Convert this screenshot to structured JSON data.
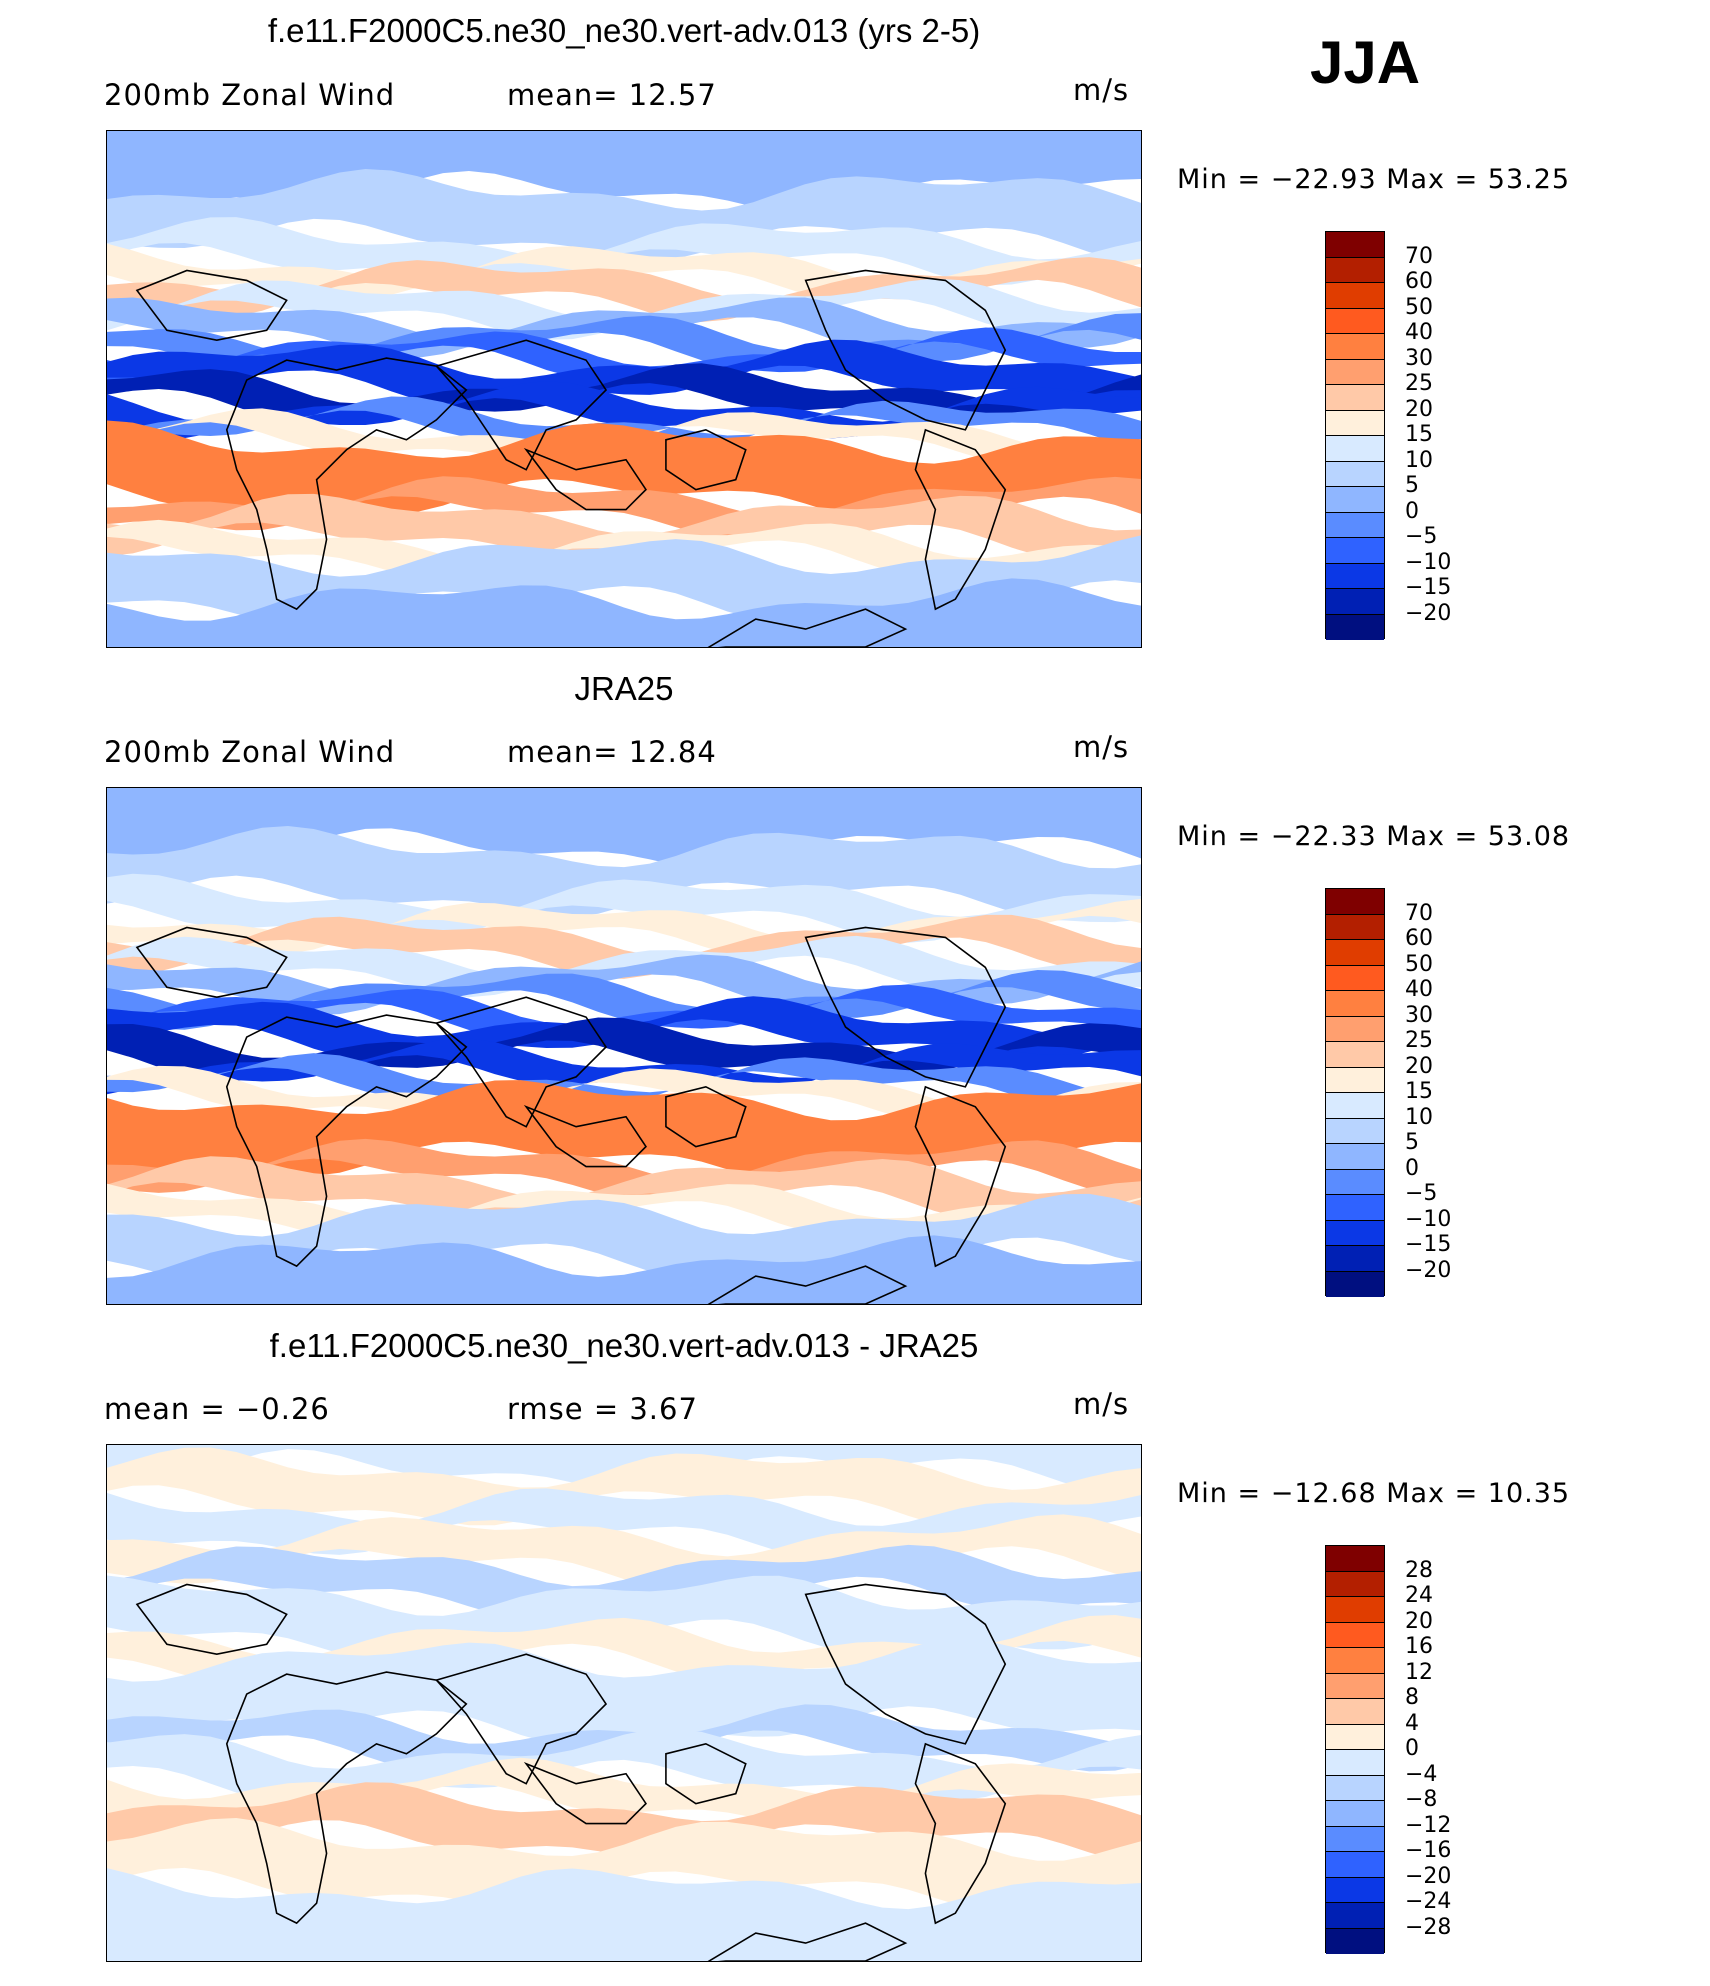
{
  "season": "JJA",
  "panels": [
    {
      "title": "f.e11.F2000C5.ne30_ne30.vert-adv.013 (yrs 2-5)",
      "left_label": "200mb  Zonal  Wind",
      "center_label": "mean=   12.57",
      "units": "m/s",
      "minmax": "Min  =  −22.93  Max  =    53.25",
      "colorbar_labels": [
        "70",
        "60",
        "50",
        "40",
        "30",
        "25",
        "20",
        "15",
        "10",
        "5",
        "0",
        "−5",
        "−10",
        "−15",
        "−20"
      ],
      "colors": [
        "#7f0000",
        "#b31f00",
        "#e03d00",
        "#ff5a1f",
        "#ff8040",
        "#ff9f6f",
        "#ffc9a8",
        "#fff0dc",
        "#d8eaff",
        "#b8d4ff",
        "#8fb6ff",
        "#5a8cff",
        "#2f62ff",
        "#0b38e6",
        "#0020b4",
        "#000f80"
      ],
      "contours": [
        [
          "#8fb6ff",
          0.0,
          0.3
        ],
        [
          "#b8d4ff",
          0.3,
          0.16
        ],
        [
          "#d8eaff",
          0.46,
          0.08
        ],
        [
          "#fff0dc",
          0.54,
          0.05
        ],
        [
          "#ffc9a8",
          0.59,
          0.07
        ],
        [
          "#d8eaff",
          0.66,
          0.06
        ],
        [
          "#8fb6ff",
          0.72,
          0.06
        ],
        [
          "#5a8cff",
          0.78,
          0.05
        ],
        [
          "#2f62ff",
          0.83,
          0.04
        ],
        [
          "#0b38e6",
          0.87,
          0.08
        ],
        [
          "#0020b4",
          0.95,
          0.06
        ],
        [
          "#0b38e6",
          1.01,
          0.05
        ],
        [
          "#5a8cff",
          1.06,
          0.04
        ],
        [
          "#fff0dc",
          1.1,
          0.04
        ],
        [
          "#ff8040",
          1.14,
          0.18
        ],
        [
          "#ff9f6f",
          1.32,
          0.06
        ],
        [
          "#ffc9a8",
          1.38,
          0.09
        ],
        [
          "#fff0dc",
          1.47,
          0.05
        ],
        [
          "#b8d4ff",
          1.52,
          0.15
        ],
        [
          "#8fb6ff",
          1.67,
          0.33
        ]
      ]
    },
    {
      "title": "JRA25",
      "left_label": "200mb  Zonal  Wind",
      "center_label": "mean=   12.84",
      "units": "m/s",
      "minmax": "Min  =  −22.33  Max  =    53.08",
      "colorbar_labels": [
        "70",
        "60",
        "50",
        "40",
        "30",
        "25",
        "20",
        "15",
        "10",
        "5",
        "0",
        "−5",
        "−10",
        "−15",
        "−20"
      ],
      "colors": [
        "#7f0000",
        "#b31f00",
        "#e03d00",
        "#ff5a1f",
        "#ff8040",
        "#ff9f6f",
        "#ffc9a8",
        "#fff0dc",
        "#d8eaff",
        "#b8d4ff",
        "#8fb6ff",
        "#5a8cff",
        "#2f62ff",
        "#0b38e6",
        "#0020b4",
        "#000f80"
      ],
      "contours": [
        [
          "#8fb6ff",
          0.0,
          0.3
        ],
        [
          "#b8d4ff",
          0.3,
          0.16
        ],
        [
          "#d8eaff",
          0.46,
          0.08
        ],
        [
          "#fff0dc",
          0.54,
          0.05
        ],
        [
          "#ffc9a8",
          0.59,
          0.07
        ],
        [
          "#d8eaff",
          0.66,
          0.06
        ],
        [
          "#8fb6ff",
          0.72,
          0.06
        ],
        [
          "#5a8cff",
          0.78,
          0.05
        ],
        [
          "#2f62ff",
          0.83,
          0.04
        ],
        [
          "#0b38e6",
          0.87,
          0.07
        ],
        [
          "#0020b4",
          0.94,
          0.07
        ],
        [
          "#0b38e6",
          1.01,
          0.05
        ],
        [
          "#5a8cff",
          1.06,
          0.04
        ],
        [
          "#fff0dc",
          1.1,
          0.04
        ],
        [
          "#ff8040",
          1.14,
          0.2
        ],
        [
          "#ff9f6f",
          1.34,
          0.06
        ],
        [
          "#ffc9a8",
          1.4,
          0.08
        ],
        [
          "#fff0dc",
          1.48,
          0.05
        ],
        [
          "#b8d4ff",
          1.53,
          0.14
        ],
        [
          "#8fb6ff",
          1.67,
          0.33
        ]
      ]
    },
    {
      "title": "f.e11.F2000C5.ne30_ne30.vert-adv.013 - JRA25",
      "left_label": "mean  =    −0.26",
      "center_label": "rmse  =     3.67",
      "units": "m/s",
      "minmax": "Min  =  −12.68  Max  =    10.35",
      "colorbar_labels": [
        "28",
        "24",
        "20",
        "16",
        "12",
        "8",
        "4",
        "0",
        "−4",
        "−8",
        "−12",
        "−16",
        "−20",
        "−24",
        "−28"
      ],
      "colors": [
        "#7f0000",
        "#b31f00",
        "#e03d00",
        "#ff5a1f",
        "#ff8040",
        "#ff9f6f",
        "#ffc9a8",
        "#fff0dc",
        "#d8eaff",
        "#b8d4ff",
        "#8fb6ff",
        "#5a8cff",
        "#2f62ff",
        "#0b38e6",
        "#0020b4",
        "#000f80"
      ],
      "contours": [
        [
          "#d8eaff",
          0.0,
          0.18
        ],
        [
          "#fff0dc",
          0.18,
          0.12
        ],
        [
          "#d8eaff",
          0.3,
          0.1
        ],
        [
          "#fff0dc",
          0.4,
          0.1
        ],
        [
          "#b8d4ff",
          0.5,
          0.1
        ],
        [
          "#d8eaff",
          0.6,
          0.14
        ],
        [
          "#fff0dc",
          0.74,
          0.08
        ],
        [
          "#d8eaff",
          0.82,
          0.22
        ],
        [
          "#b8d4ff",
          1.04,
          0.08
        ],
        [
          "#d8eaff",
          1.12,
          0.1
        ],
        [
          "#fff0dc",
          1.22,
          0.08
        ],
        [
          "#ffc9a8",
          1.3,
          0.12
        ],
        [
          "#fff0dc",
          1.42,
          0.16
        ],
        [
          "#d8eaff",
          1.58,
          0.42
        ]
      ]
    }
  ]
}
